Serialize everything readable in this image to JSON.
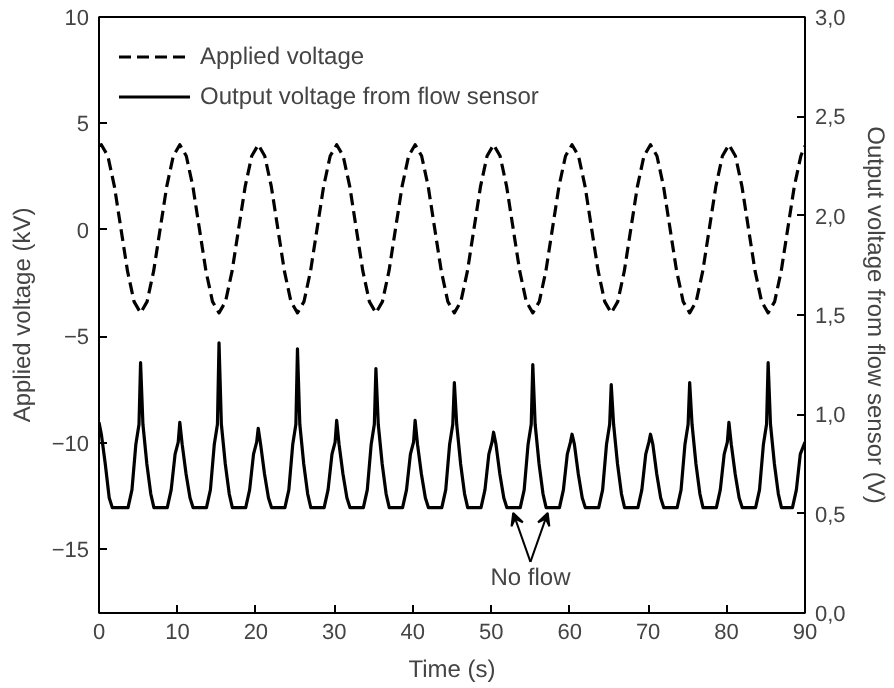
{
  "chart_data": {
    "type": "line",
    "xlabel": "Time (s)",
    "ylabel": "Applied voltage (kV)",
    "y2label": "Output voltage from flow sensor (V)",
    "xlim": [
      0,
      90
    ],
    "xticks": [
      0,
      10,
      20,
      30,
      40,
      50,
      60,
      70,
      80,
      90
    ],
    "ylim": [
      -18,
      10
    ],
    "yticks": [
      -15,
      -10,
      -5,
      0,
      5,
      10
    ],
    "y2lim": [
      0,
      3
    ],
    "y2ticks": [
      {
        "value": 0,
        "label": "0,0"
      },
      {
        "value": 0.5,
        "label": "0,5"
      },
      {
        "value": 1,
        "label": "1,0"
      },
      {
        "value": 1.5,
        "label": "1,5"
      },
      {
        "value": 2,
        "label": "2,0"
      },
      {
        "value": 2.5,
        "label": "2,5"
      },
      {
        "value": 3,
        "label": "3,0"
      }
    ],
    "legend": "top left",
    "grid": false,
    "marker": "none",
    "annotations": [
      {
        "text": "No flow",
        "x": 55,
        "y": -13
      }
    ],
    "series": [
      {
        "name": "Applied voltage",
        "color": "#000000",
        "line_style": "dashed",
        "x": [
          0,
          0.3,
          1.13,
          1.97,
          2.8,
          3.63,
          4.47,
          5.3,
          6.13,
          6.97,
          7.8,
          8.63,
          9.47,
          10.3,
          11.13,
          11.97,
          12.8,
          13.63,
          14.47,
          15.3,
          16.13,
          16.97,
          17.8,
          18.63,
          19.47,
          20.3,
          21.13,
          21.97,
          22.8,
          23.63,
          24.47,
          25.3,
          26.13,
          26.97,
          27.8,
          28.63,
          29.47,
          30.3,
          31.13,
          31.97,
          32.8,
          33.63,
          34.47,
          35.3,
          36.13,
          36.97,
          37.8,
          38.63,
          39.47,
          40.3,
          41.13,
          41.97,
          42.8,
          43.63,
          44.47,
          45.3,
          46.13,
          46.97,
          47.8,
          48.63,
          49.47,
          50.3,
          51.13,
          51.97,
          52.8,
          53.63,
          54.47,
          55.3,
          56.13,
          56.97,
          57.8,
          58.63,
          59.47,
          60.3,
          61.13,
          61.97,
          62.8,
          63.63,
          64.47,
          65.3,
          66.13,
          66.97,
          67.8,
          68.63,
          69.47,
          70.3,
          71.13,
          71.97,
          72.8,
          73.63,
          74.47,
          75.3,
          76.13,
          76.97,
          77.8,
          78.63,
          79.47,
          80.3,
          81.13,
          81.97,
          82.8,
          83.63,
          84.47,
          85.3,
          86.13,
          86.97,
          87.8,
          88.63,
          89.47,
          90
        ],
        "values": [
          3.95,
          4.0,
          3.47,
          2.03,
          0.05,
          -1.93,
          -3.37,
          -3.9,
          -3.37,
          -1.93,
          0.05,
          2.03,
          3.47,
          4.0,
          3.47,
          2.03,
          0.05,
          -1.93,
          -3.37,
          -3.9,
          -3.37,
          -1.93,
          0.05,
          2.03,
          3.47,
          4.0,
          3.47,
          2.03,
          0.05,
          -1.93,
          -3.37,
          -3.9,
          -3.37,
          -1.93,
          0.05,
          2.03,
          3.47,
          4.0,
          3.47,
          2.03,
          0.05,
          -1.93,
          -3.37,
          -3.9,
          -3.37,
          -1.93,
          0.05,
          2.03,
          3.47,
          4.0,
          3.47,
          2.03,
          0.05,
          -1.93,
          -3.37,
          -3.9,
          -3.37,
          -1.93,
          0.05,
          2.03,
          3.47,
          4.0,
          3.47,
          2.03,
          0.05,
          -1.93,
          -3.37,
          -3.9,
          -3.37,
          -1.93,
          0.05,
          2.03,
          3.47,
          4.0,
          3.47,
          2.03,
          0.05,
          -1.93,
          -3.37,
          -3.9,
          -3.37,
          -1.93,
          0.05,
          2.03,
          3.47,
          4.0,
          3.47,
          2.03,
          0.05,
          -1.93,
          -3.37,
          -3.9,
          -3.37,
          -1.93,
          0.05,
          2.03,
          3.47,
          4.0,
          3.47,
          2.03,
          0.05,
          -1.93,
          -3.37,
          -3.9,
          -3.37,
          -1.93,
          0.05,
          2.03,
          3.47,
          3.95
        ]
      },
      {
        "name": "Output voltage from flow sensor",
        "color": "#000000",
        "line_style": "solid",
        "axis": "y2",
        "x": [
          0,
          0.3,
          0.8,
          1.3,
          1.7,
          3.7,
          4.2,
          4.7,
          5.1,
          5.3,
          5.6,
          6.1,
          6.6,
          7.0,
          8.7,
          9.2,
          9.7,
          10.1,
          10.3,
          10.6,
          11.1,
          11.6,
          12.0,
          13.7,
          14.2,
          14.7,
          15.1,
          15.3,
          15.6,
          16.1,
          16.6,
          17.0,
          18.7,
          19.2,
          19.7,
          20.1,
          20.3,
          20.6,
          21.1,
          21.6,
          22.0,
          23.7,
          24.2,
          24.7,
          25.1,
          25.3,
          25.6,
          26.1,
          26.6,
          27.0,
          28.7,
          29.2,
          29.7,
          30.1,
          30.3,
          30.6,
          31.1,
          31.6,
          32.0,
          33.7,
          34.2,
          34.7,
          35.1,
          35.3,
          35.6,
          36.1,
          36.6,
          37.0,
          38.7,
          39.2,
          39.7,
          40.1,
          40.3,
          40.6,
          41.1,
          41.6,
          42.0,
          43.7,
          44.2,
          44.7,
          45.1,
          45.3,
          45.6,
          46.1,
          46.6,
          47.0,
          48.7,
          49.2,
          49.7,
          50.1,
          50.3,
          50.6,
          51.1,
          51.6,
          52.0,
          53.7,
          54.2,
          54.7,
          55.1,
          55.3,
          55.6,
          56.1,
          56.6,
          57.0,
          58.7,
          59.2,
          59.7,
          60.1,
          60.3,
          60.6,
          61.1,
          61.6,
          62.0,
          63.7,
          64.2,
          64.7,
          65.1,
          65.3,
          65.6,
          66.1,
          66.6,
          67.0,
          68.7,
          69.2,
          69.7,
          70.1,
          70.3,
          70.6,
          71.1,
          71.6,
          72.0,
          73.7,
          74.2,
          74.7,
          75.1,
          75.3,
          75.6,
          76.1,
          76.6,
          77.0,
          78.7,
          79.2,
          79.7,
          80.1,
          80.3,
          80.6,
          81.1,
          81.6,
          82.0,
          83.7,
          84.2,
          84.7,
          85.1,
          85.3,
          85.6,
          86.1,
          86.6,
          87.0,
          88.4,
          88.9,
          89.4,
          90
        ],
        "values": [
          0.96,
          0.9,
          0.75,
          0.58,
          0.53,
          0.53,
          0.62,
          0.85,
          0.95,
          1.26,
          0.95,
          0.75,
          0.6,
          0.53,
          0.53,
          0.62,
          0.8,
          0.86,
          0.96,
          0.85,
          0.7,
          0.58,
          0.53,
          0.53,
          0.62,
          0.85,
          0.95,
          1.36,
          0.95,
          0.75,
          0.6,
          0.53,
          0.53,
          0.62,
          0.8,
          0.86,
          0.93,
          0.85,
          0.7,
          0.58,
          0.53,
          0.53,
          0.62,
          0.85,
          0.95,
          1.33,
          0.95,
          0.75,
          0.6,
          0.53,
          0.53,
          0.62,
          0.8,
          0.86,
          0.97,
          0.85,
          0.7,
          0.58,
          0.53,
          0.53,
          0.62,
          0.85,
          0.95,
          1.23,
          0.95,
          0.75,
          0.6,
          0.53,
          0.53,
          0.62,
          0.8,
          0.86,
          0.97,
          0.85,
          0.7,
          0.58,
          0.53,
          0.53,
          0.62,
          0.85,
          0.95,
          1.16,
          0.95,
          0.75,
          0.6,
          0.53,
          0.53,
          0.62,
          0.8,
          0.86,
          0.91,
          0.85,
          0.7,
          0.58,
          0.53,
          0.53,
          0.62,
          0.85,
          0.95,
          1.25,
          0.95,
          0.75,
          0.6,
          0.53,
          0.53,
          0.62,
          0.8,
          0.86,
          0.9,
          0.85,
          0.7,
          0.58,
          0.53,
          0.53,
          0.62,
          0.85,
          0.95,
          1.15,
          0.95,
          0.75,
          0.6,
          0.53,
          0.53,
          0.62,
          0.8,
          0.86,
          0.9,
          0.85,
          0.7,
          0.58,
          0.53,
          0.53,
          0.62,
          0.85,
          0.95,
          1.16,
          0.95,
          0.75,
          0.6,
          0.53,
          0.53,
          0.62,
          0.8,
          0.86,
          0.96,
          0.85,
          0.7,
          0.58,
          0.53,
          0.53,
          0.62,
          0.85,
          0.95,
          1.26,
          0.95,
          0.75,
          0.6,
          0.53,
          0.53,
          0.62,
          0.8,
          0.86
        ]
      }
    ]
  }
}
